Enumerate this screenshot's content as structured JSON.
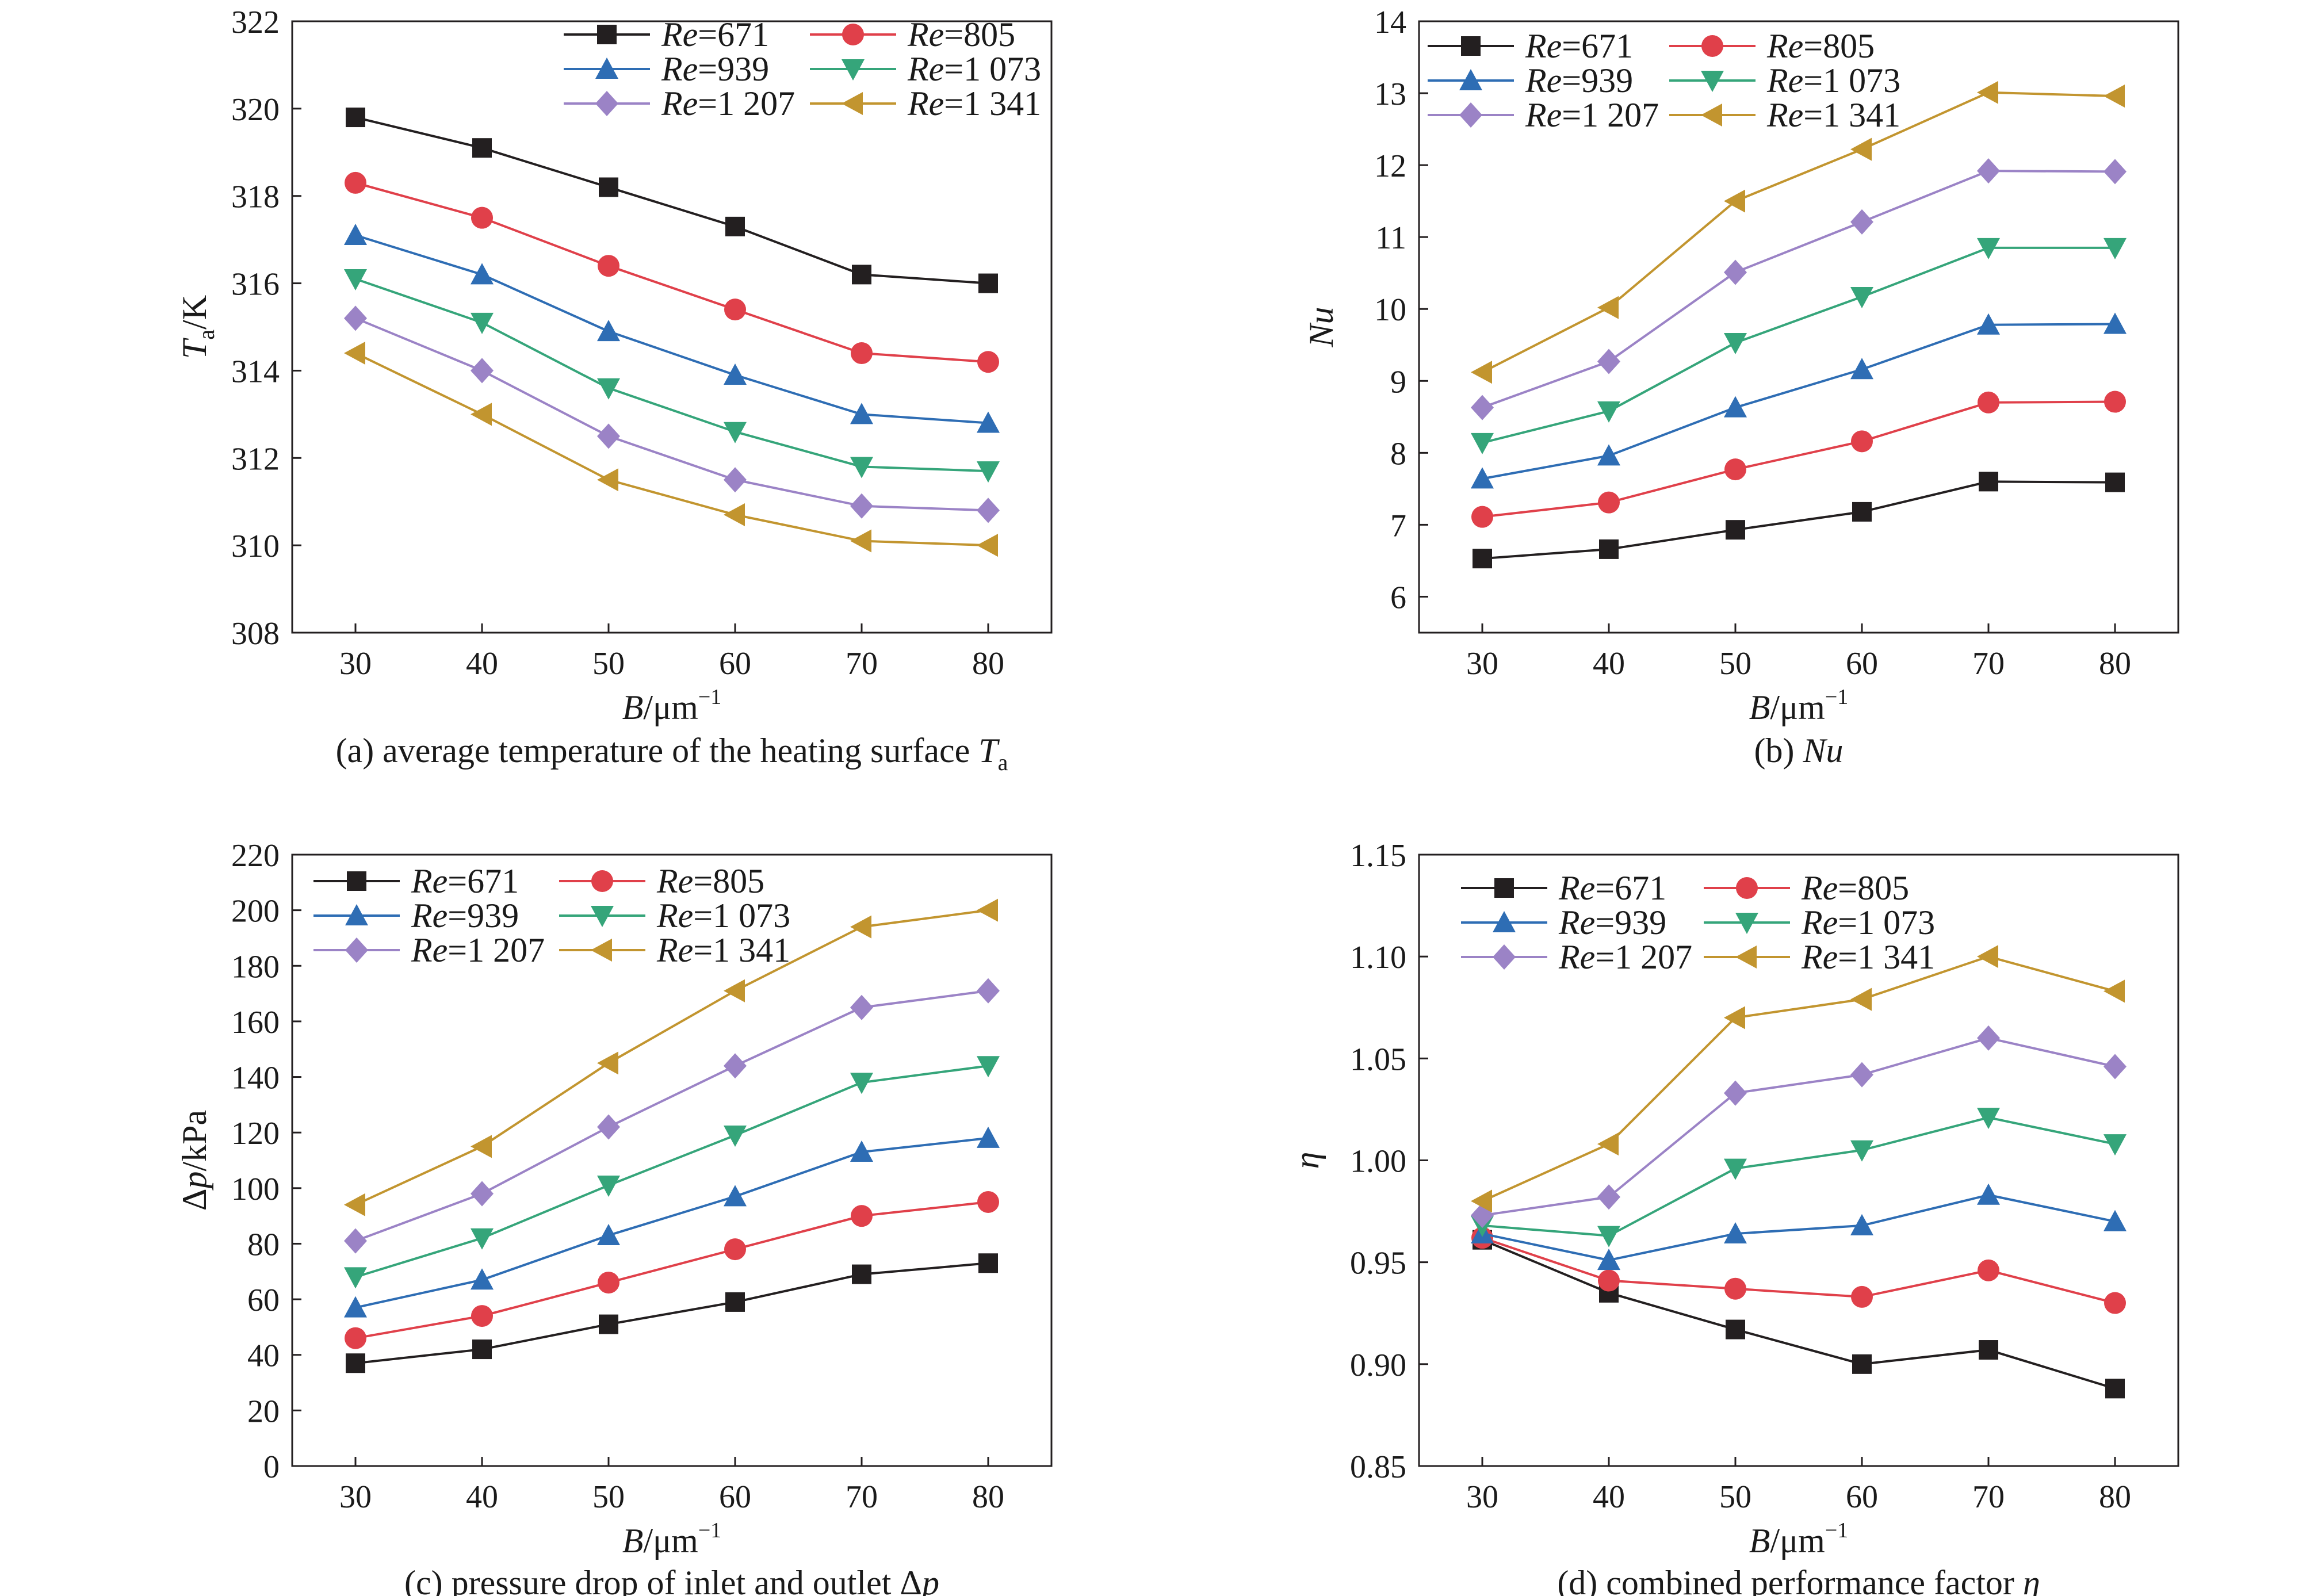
{
  "chart_data": [
    {
      "type": "line",
      "caption": "(a) average temperature of the heating surface T",
      "caption_sub": "a",
      "xlabel": "B/μm",
      "xlabel_sup": "−1",
      "ylabel": "T",
      "ylabel_sub": "a",
      "ylabel_rest": "/K",
      "ylabel_italic": true,
      "x": [
        30,
        40,
        50,
        60,
        70,
        80
      ],
      "xlim": [
        25,
        85
      ],
      "ylim": [
        308,
        322
      ],
      "yticks": [
        308,
        310,
        312,
        314,
        316,
        318,
        320,
        322
      ],
      "ytick_labels": [
        "308",
        "310",
        "312",
        "314",
        "316",
        "318",
        "320",
        "322"
      ],
      "legend_position": "top-right",
      "series": [
        {
          "name": "Re=671",
          "values": [
            319.8,
            319.1,
            318.2,
            317.3,
            316.2,
            316.0
          ]
        },
        {
          "name": "Re=805",
          "values": [
            318.3,
            317.5,
            316.4,
            315.4,
            314.4,
            314.2
          ]
        },
        {
          "name": "Re=939",
          "values": [
            317.1,
            316.2,
            314.9,
            313.9,
            313.0,
            312.8
          ]
        },
        {
          "name": "Re=1 073",
          "values": [
            316.1,
            315.1,
            313.6,
            312.6,
            311.8,
            311.7
          ]
        },
        {
          "name": "Re=1 207",
          "values": [
            315.2,
            314.0,
            312.5,
            311.5,
            310.9,
            310.8
          ]
        },
        {
          "name": "Re=1 341",
          "values": [
            314.4,
            313.0,
            311.5,
            310.7,
            310.1,
            310.0
          ]
        }
      ]
    },
    {
      "type": "line",
      "caption": "(b) Nu",
      "caption_sub": "",
      "xlabel": "B/μm",
      "xlabel_sup": "−1",
      "ylabel": "Nu",
      "ylabel_sub": "",
      "ylabel_rest": "",
      "ylabel_italic": true,
      "x": [
        30,
        40,
        50,
        60,
        70,
        80
      ],
      "xlim": [
        25,
        85
      ],
      "ylim": [
        5.5,
        14
      ],
      "yticks": [
        6,
        7,
        8,
        9,
        10,
        11,
        12,
        13,
        14
      ],
      "ytick_labels": [
        "6",
        "7",
        "8",
        "9",
        "10",
        "11",
        "12",
        "13",
        "14"
      ],
      "legend_position": "top-left",
      "series": [
        {
          "name": "Re=671",
          "values": [
            6.53,
            6.66,
            6.93,
            7.18,
            7.6,
            7.59
          ]
        },
        {
          "name": "Re=805",
          "values": [
            7.11,
            7.31,
            7.77,
            8.16,
            8.7,
            8.71
          ]
        },
        {
          "name": "Re=939",
          "values": [
            7.64,
            7.96,
            8.63,
            9.16,
            9.78,
            9.79
          ]
        },
        {
          "name": "Re=1 073",
          "values": [
            8.14,
            8.58,
            9.53,
            10.17,
            10.85,
            10.85
          ]
        },
        {
          "name": "Re=1 207",
          "values": [
            8.63,
            9.27,
            10.51,
            11.21,
            11.92,
            11.91
          ]
        },
        {
          "name": "Re=1 341",
          "values": [
            9.12,
            10.02,
            11.5,
            12.22,
            13.01,
            12.96
          ]
        }
      ]
    },
    {
      "type": "line",
      "caption": "(c) pressure drop of inlet and outlet Δp",
      "caption_sub": "",
      "xlabel": "B/μm",
      "xlabel_sup": "−1",
      "ylabel": "Δp",
      "ylabel_sub": "",
      "ylabel_rest": "/kPa",
      "ylabel_italic": false,
      "x": [
        30,
        40,
        50,
        60,
        70,
        80
      ],
      "xlim": [
        25,
        85
      ],
      "ylim": [
        0,
        220
      ],
      "yticks": [
        0,
        20,
        40,
        60,
        80,
        100,
        120,
        140,
        160,
        180,
        200,
        220
      ],
      "ytick_labels": [
        "0",
        "20",
        "40",
        "60",
        "80",
        "100",
        "120",
        "140",
        "160",
        "180",
        "200",
        "220"
      ],
      "legend_position": "top-left",
      "series": [
        {
          "name": "Re=671",
          "values": [
            37,
            42,
            51,
            59,
            69,
            73
          ]
        },
        {
          "name": "Re=805",
          "values": [
            46,
            54,
            66,
            78,
            90,
            95
          ]
        },
        {
          "name": "Re=939",
          "values": [
            57,
            67,
            83,
            97,
            113,
            118
          ]
        },
        {
          "name": "Re=1 073",
          "values": [
            68,
            82,
            101,
            119,
            138,
            144
          ]
        },
        {
          "name": "Re=1 207",
          "values": [
            81,
            98,
            122,
            144,
            165,
            171
          ]
        },
        {
          "name": "Re=1 341",
          "values": [
            94,
            115,
            145,
            171,
            194,
            200
          ]
        }
      ]
    },
    {
      "type": "line",
      "caption": "(d) combined performance factor η",
      "caption_sub": "",
      "xlabel": "B/μm",
      "xlabel_sup": "−1",
      "ylabel": "η",
      "ylabel_sub": "",
      "ylabel_rest": "",
      "ylabel_italic": true,
      "x": [
        30,
        40,
        50,
        60,
        70,
        80
      ],
      "xlim": [
        25,
        85
      ],
      "ylim": [
        0.85,
        1.15
      ],
      "yticks": [
        0.85,
        0.9,
        0.95,
        1.0,
        1.05,
        1.1,
        1.15
      ],
      "ytick_labels": [
        "0.85",
        "0.90",
        "0.95",
        "1.00",
        "1.05",
        "1.10",
        "1.15"
      ],
      "legend_position": "top-left",
      "series": [
        {
          "name": "Re=671",
          "values": [
            0.961,
            0.935,
            0.917,
            0.9,
            0.907,
            0.888
          ]
        },
        {
          "name": "Re=805",
          "values": [
            0.962,
            0.941,
            0.937,
            0.933,
            0.946,
            0.93
          ]
        },
        {
          "name": "Re=939",
          "values": [
            0.964,
            0.951,
            0.964,
            0.968,
            0.983,
            0.97
          ]
        },
        {
          "name": "Re=1 073",
          "values": [
            0.968,
            0.963,
            0.996,
            1.005,
            1.021,
            1.008
          ]
        },
        {
          "name": "Re=1 207",
          "values": [
            0.973,
            0.982,
            1.033,
            1.042,
            1.06,
            1.046
          ]
        },
        {
          "name": "Re=1 341",
          "values": [
            0.98,
            1.008,
            1.07,
            1.079,
            1.1,
            1.083
          ]
        }
      ]
    }
  ],
  "series_styles": [
    {
      "color": "#231f20",
      "marker": "square"
    },
    {
      "color": "#e0404a",
      "marker": "circle"
    },
    {
      "color": "#2e6db4",
      "marker": "triangle-up"
    },
    {
      "color": "#35a57a",
      "marker": "triangle-down"
    },
    {
      "color": "#9b83c6",
      "marker": "diamond"
    },
    {
      "color": "#c2952f",
      "marker": "triangle-left"
    }
  ]
}
